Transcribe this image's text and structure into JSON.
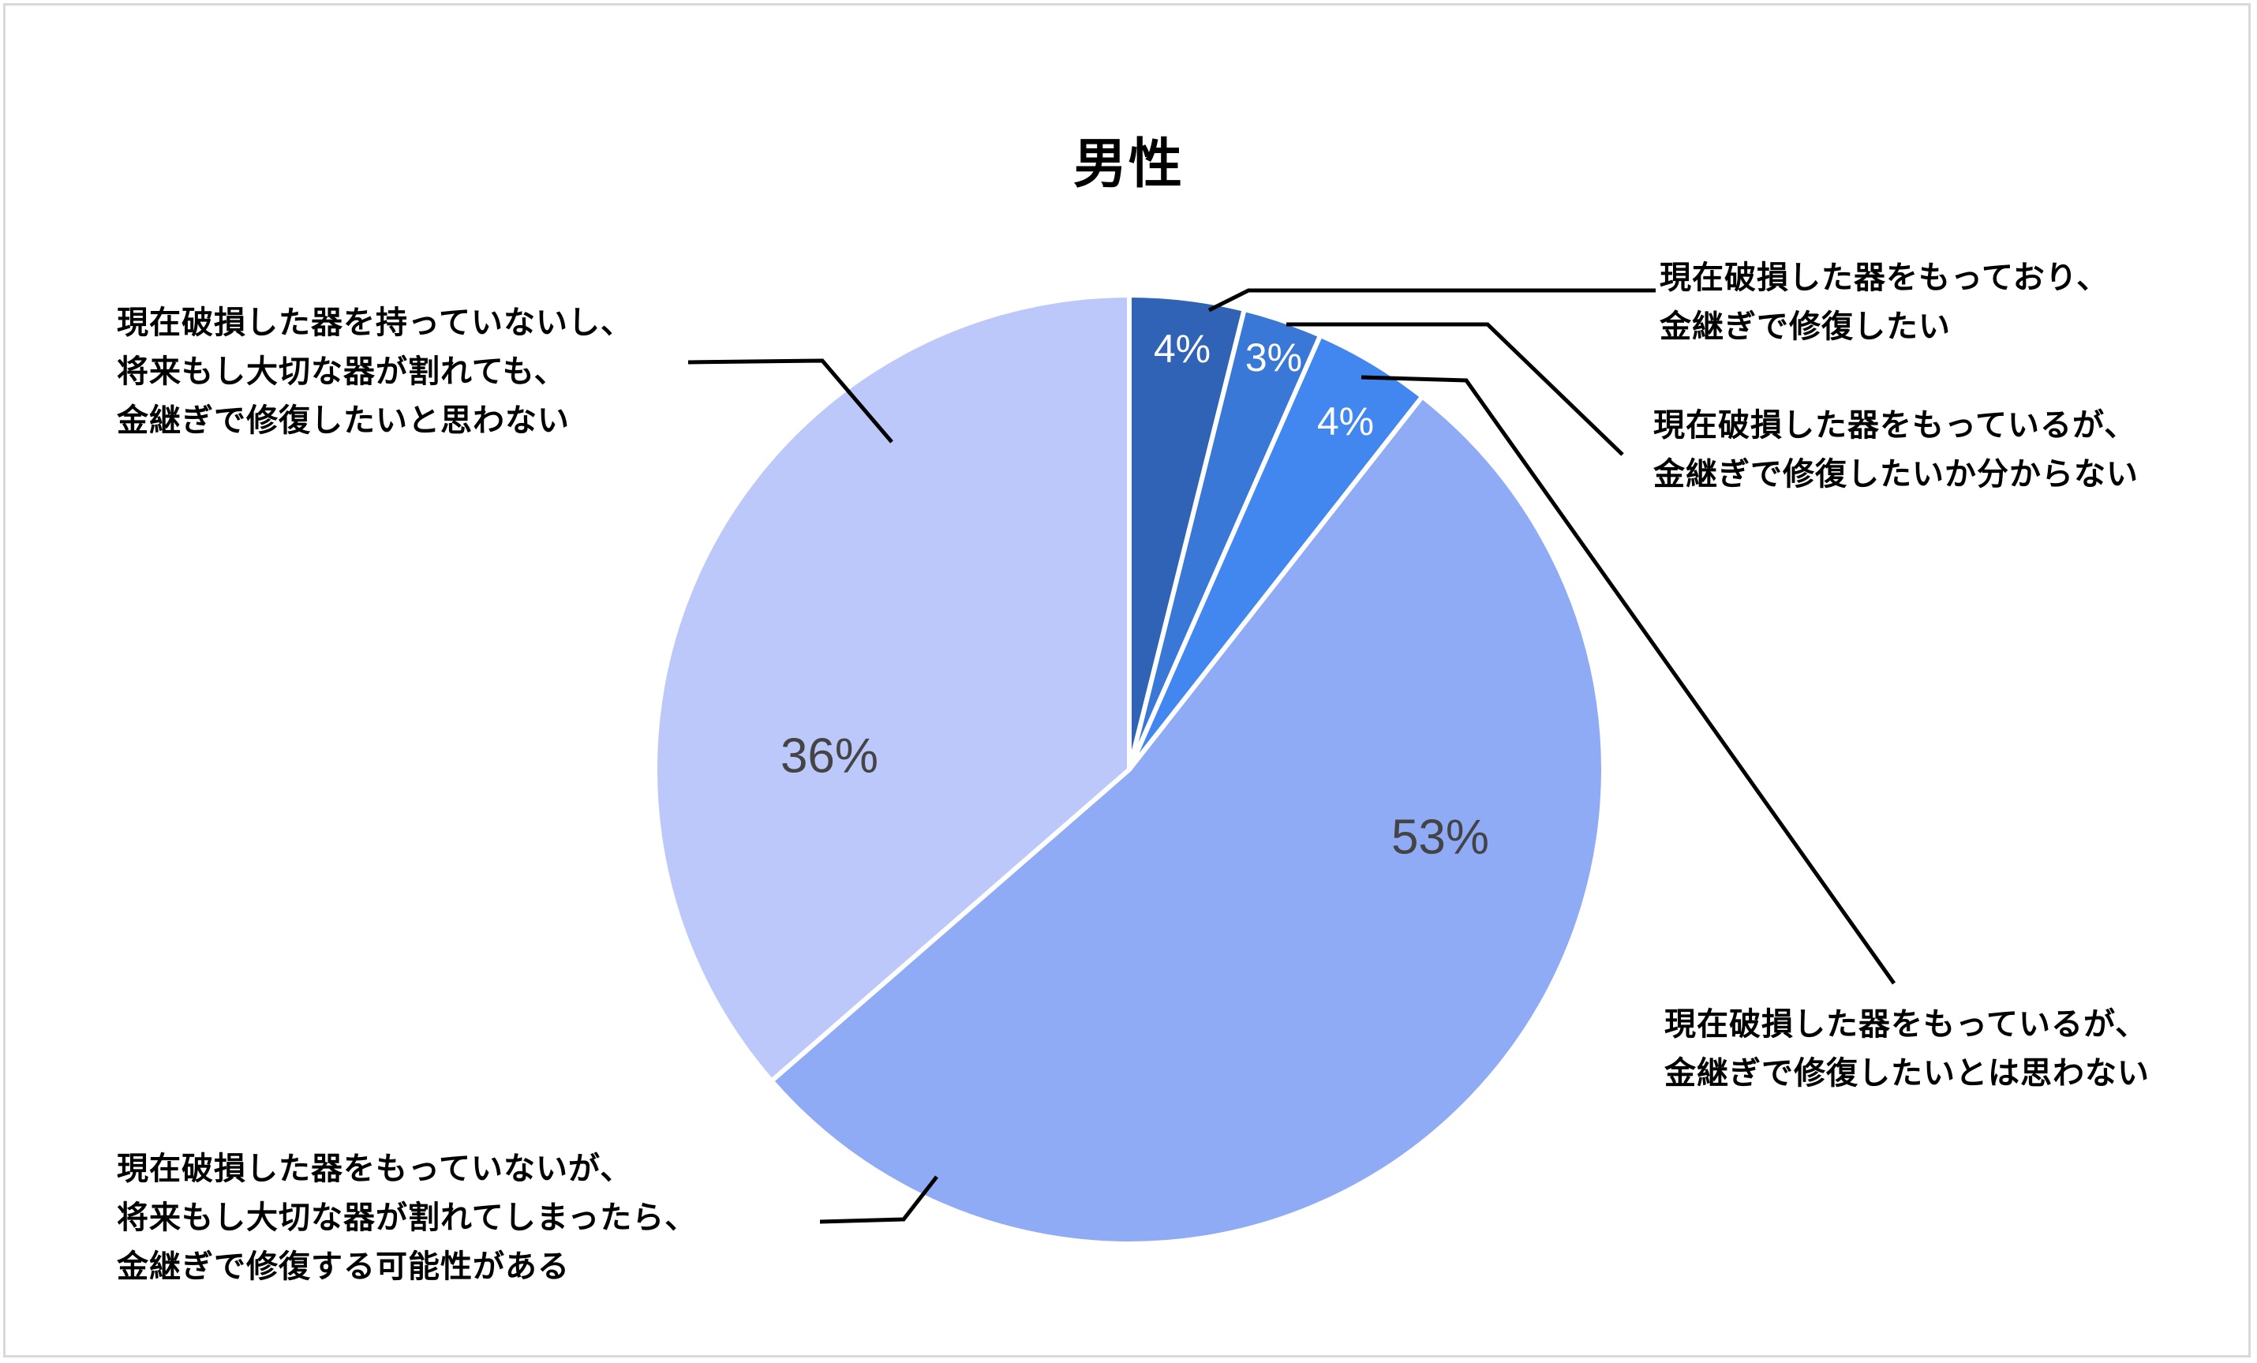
{
  "chart_data": {
    "type": "pie",
    "title": "男性",
    "start_angle_deg": 0,
    "direction": "clockwise",
    "slices": [
      {
        "label": "現在破損した器をもっており、金継ぎで修復したい",
        "label_lines": [
          "現在破損した器をもっており、",
          "金継ぎで修復したい"
        ],
        "value": 4,
        "display": "4%",
        "render_fraction": 0.039,
        "color": "#3063B5"
      },
      {
        "label": "現在破損した器をもっているが、金継ぎで修復したいか分からない",
        "label_lines": [
          "現在破損した器をもっているが、",
          "金継ぎで修復したいか分からない"
        ],
        "value": 3,
        "display": "3%",
        "render_fraction": 0.027,
        "color": "#3A78D8"
      },
      {
        "label": "現在破損した器をもっているが、金継ぎで修復したいとは思わない",
        "label_lines": [
          "現在破損した器をもっているが、",
          "金継ぎで修復したいとは思わない"
        ],
        "value": 4,
        "display": "4%",
        "render_fraction": 0.04,
        "color": "#4286F0"
      },
      {
        "label": "現在破損した器をもっていないが、将来もし大切な器が割れてしまったら、金継ぎで修復する可能性がある",
        "label_lines": [
          "現在破損した器をもっていないが、",
          "将来もし大切な器が割れてしまったら、",
          "金継ぎで修復する可能性がある"
        ],
        "value": 53,
        "display": "53%",
        "render_fraction": 0.53,
        "color": "#8FABF5"
      },
      {
        "label": "現在破損した器を持っていないし、将来もし大切な器が割れても、金継ぎで修復したいと思わない",
        "label_lines": [
          "現在破損した器を持っていないし、",
          "将来もし大切な器が割れても、",
          "金継ぎで修復したいと思わない"
        ],
        "value": 36,
        "display": "36%",
        "render_fraction": 0.364,
        "color": "#BBC8F9"
      }
    ],
    "legend": "none (callout labels with leader lines)",
    "data_labels": "percent inside slices"
  },
  "colors": {
    "border": "#d9d9d9",
    "slice_separator": "#ffffff",
    "leader_line": "#000000",
    "inner_label_light": "#ffffff",
    "inner_label_dark": "#444444"
  }
}
